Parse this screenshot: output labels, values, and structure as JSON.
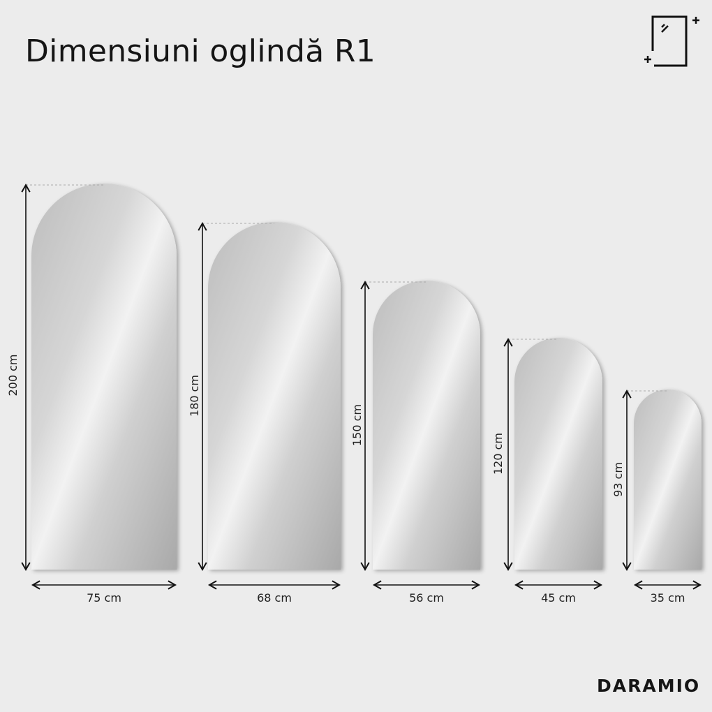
{
  "title": "Dimensiuni oglindă R1",
  "brand": "DARAMIO",
  "icons": {
    "top_right": "mirror-sparkle-icon"
  },
  "mirrors": [
    {
      "height_label": "200 cm",
      "width_label": "75 cm"
    },
    {
      "height_label": "180 cm",
      "width_label": "68 cm"
    },
    {
      "height_label": "150 cm",
      "width_label": "56 cm"
    },
    {
      "height_label": "120 cm",
      "width_label": "45 cm"
    },
    {
      "height_label": "93 cm",
      "width_label": "35 cm"
    }
  ]
}
